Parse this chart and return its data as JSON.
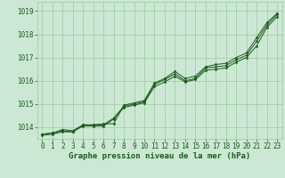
{
  "bg_color": "#cce8d4",
  "grid_color": "#99cc99",
  "line_color": "#1a5c1a",
  "marker_color": "#1a5c1a",
  "xlabel": "Graphe pression niveau de la mer (hPa)",
  "xlabel_color": "#1a5c1a",
  "xlabel_fontsize": 6.5,
  "tick_color": "#1a5c1a",
  "tick_fontsize": 5.5,
  "ylim": [
    1013.5,
    1019.4
  ],
  "xlim": [
    -0.5,
    23.5
  ],
  "yticks": [
    1014,
    1015,
    1016,
    1017,
    1018,
    1019
  ],
  "xticks": [
    0,
    1,
    2,
    3,
    4,
    5,
    6,
    7,
    8,
    9,
    10,
    11,
    12,
    13,
    14,
    15,
    16,
    17,
    18,
    19,
    20,
    21,
    22,
    23
  ],
  "series": [
    [
      1013.7,
      1013.75,
      1013.85,
      1013.8,
      1014.1,
      1014.1,
      1014.1,
      1014.4,
      1014.9,
      1015.0,
      1015.1,
      1015.85,
      1016.05,
      1016.3,
      1016.0,
      1016.1,
      1016.55,
      1016.6,
      1016.65,
      1016.9,
      1017.1,
      1017.7,
      1018.4,
      1018.85
    ],
    [
      1013.65,
      1013.7,
      1013.8,
      1013.8,
      1014.05,
      1014.05,
      1014.05,
      1014.35,
      1014.85,
      1014.95,
      1015.05,
      1015.75,
      1015.95,
      1016.2,
      1015.95,
      1016.05,
      1016.45,
      1016.5,
      1016.55,
      1016.8,
      1017.0,
      1017.5,
      1018.3,
      1018.75
    ],
    [
      1013.7,
      1013.75,
      1013.9,
      1013.85,
      1014.1,
      1014.1,
      1014.15,
      1014.15,
      1014.95,
      1015.05,
      1015.15,
      1015.9,
      1016.1,
      1016.4,
      1016.1,
      1016.2,
      1016.6,
      1016.7,
      1016.75,
      1017.0,
      1017.2,
      1017.85,
      1018.5,
      1018.9
    ]
  ]
}
